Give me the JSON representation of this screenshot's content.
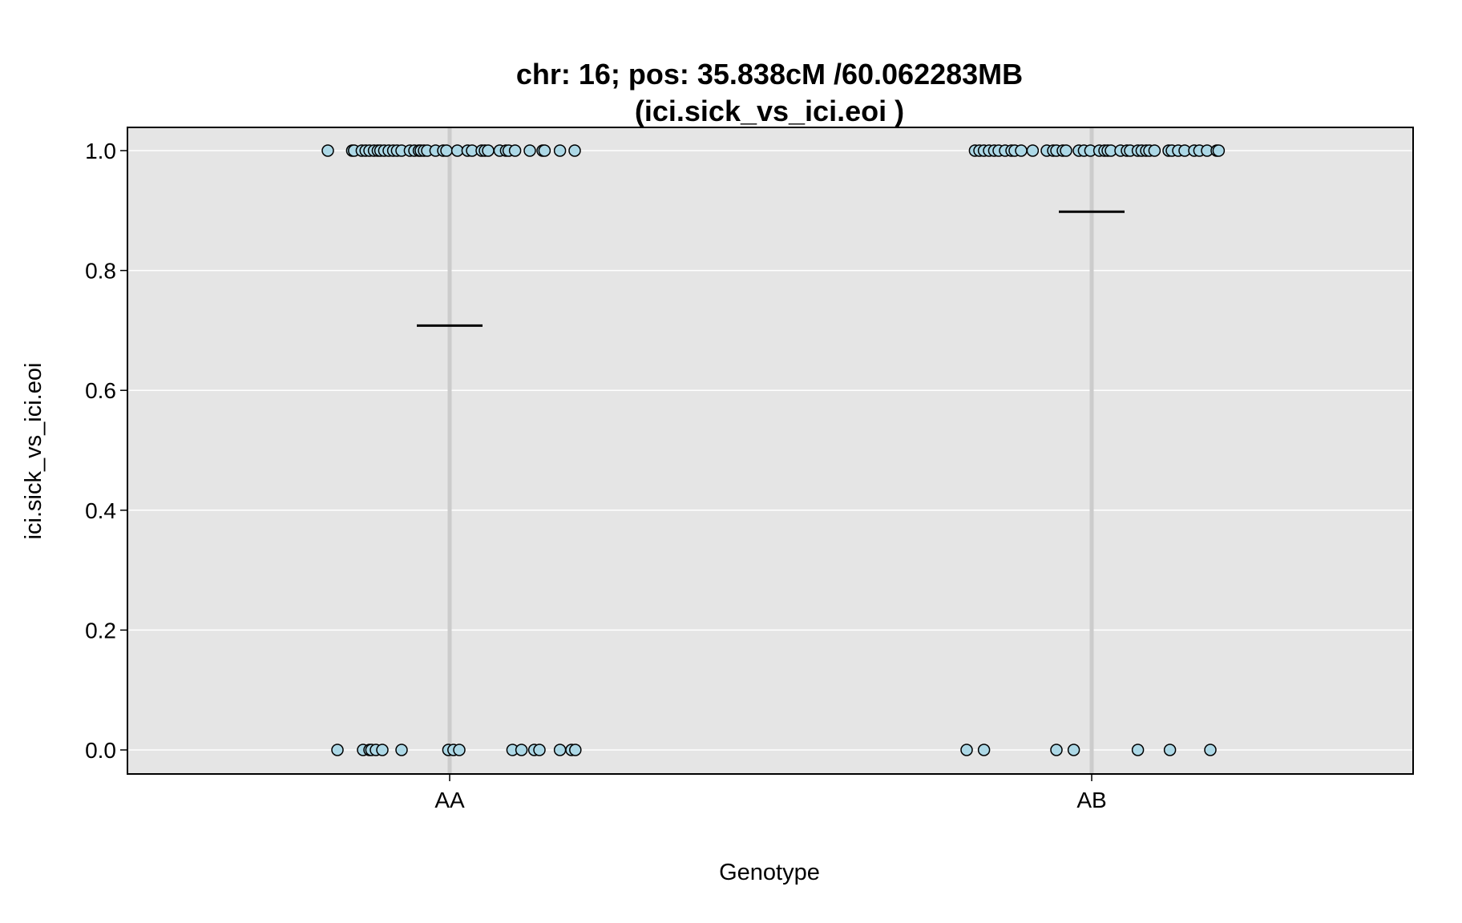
{
  "chart_data": {
    "type": "scatter",
    "title_line1": "chr: 16; pos: 35.838cM /60.062283MB",
    "title_line2": "(ici.sick_vs_ici.eoi )",
    "xlabel": "Genotype",
    "ylabel": "ici.sick_vs_ici.eoi",
    "categories": [
      "AA",
      "AB"
    ],
    "ylim": [
      -0.04,
      1.04
    ],
    "yticks": [
      "0.0",
      "0.2",
      "0.4",
      "0.6",
      "0.8",
      "1.0"
    ],
    "grid": true,
    "colors": {
      "panel_background": "#e5e5e5",
      "gridline": "#ffffff",
      "category_line": "#cccccc",
      "point_fill": "#add8e6",
      "point_stroke": "#000000",
      "mean_line": "#000000"
    },
    "series": [
      {
        "category": "AA",
        "mean": 0.708,
        "points": [
          {
            "jitter": -0.19,
            "y": 1
          },
          {
            "jitter": -0.152,
            "y": 1
          },
          {
            "jitter": -0.149,
            "y": 1
          },
          {
            "jitter": -0.137,
            "y": 1
          },
          {
            "jitter": -0.131,
            "y": 1
          },
          {
            "jitter": -0.125,
            "y": 1
          },
          {
            "jitter": -0.118,
            "y": 1
          },
          {
            "jitter": -0.112,
            "y": 1
          },
          {
            "jitter": -0.108,
            "y": 1
          },
          {
            "jitter": -0.102,
            "y": 1
          },
          {
            "jitter": -0.095,
            "y": 1
          },
          {
            "jitter": -0.088,
            "y": 1
          },
          {
            "jitter": -0.082,
            "y": 1
          },
          {
            "jitter": -0.075,
            "y": 1
          },
          {
            "jitter": -0.062,
            "y": 1
          },
          {
            "jitter": -0.055,
            "y": 1
          },
          {
            "jitter": -0.048,
            "y": 1
          },
          {
            "jitter": -0.045,
            "y": 1
          },
          {
            "jitter": -0.04,
            "y": 1
          },
          {
            "jitter": -0.035,
            "y": 1
          },
          {
            "jitter": -0.022,
            "y": 1
          },
          {
            "jitter": -0.01,
            "y": 1
          },
          {
            "jitter": -0.005,
            "y": 1
          },
          {
            "jitter": 0.012,
            "y": 1
          },
          {
            "jitter": 0.028,
            "y": 1
          },
          {
            "jitter": 0.035,
            "y": 1
          },
          {
            "jitter": 0.05,
            "y": 1
          },
          {
            "jitter": 0.055,
            "y": 1
          },
          {
            "jitter": 0.06,
            "y": 1
          },
          {
            "jitter": 0.078,
            "y": 1
          },
          {
            "jitter": 0.088,
            "y": 1
          },
          {
            "jitter": 0.092,
            "y": 1
          },
          {
            "jitter": 0.102,
            "y": 1
          },
          {
            "jitter": 0.125,
            "y": 1
          },
          {
            "jitter": 0.145,
            "y": 1
          },
          {
            "jitter": 0.148,
            "y": 1
          },
          {
            "jitter": 0.172,
            "y": 1
          },
          {
            "jitter": 0.195,
            "y": 1
          },
          {
            "jitter": -0.175,
            "y": 0
          },
          {
            "jitter": -0.135,
            "y": 0
          },
          {
            "jitter": -0.125,
            "y": 0
          },
          {
            "jitter": -0.122,
            "y": 0
          },
          {
            "jitter": -0.115,
            "y": 0
          },
          {
            "jitter": -0.105,
            "y": 0
          },
          {
            "jitter": -0.075,
            "y": 0
          },
          {
            "jitter": -0.002,
            "y": 0
          },
          {
            "jitter": 0.006,
            "y": 0
          },
          {
            "jitter": 0.015,
            "y": 0
          },
          {
            "jitter": 0.098,
            "y": 0
          },
          {
            "jitter": 0.112,
            "y": 0
          },
          {
            "jitter": 0.132,
            "y": 0
          },
          {
            "jitter": 0.14,
            "y": 0
          },
          {
            "jitter": 0.172,
            "y": 0
          },
          {
            "jitter": 0.19,
            "y": 0
          },
          {
            "jitter": 0.196,
            "y": 0
          }
        ]
      },
      {
        "category": "AB",
        "mean": 0.898,
        "points": [
          {
            "jitter": -0.182,
            "y": 1
          },
          {
            "jitter": -0.175,
            "y": 1
          },
          {
            "jitter": -0.168,
            "y": 1
          },
          {
            "jitter": -0.16,
            "y": 1
          },
          {
            "jitter": -0.152,
            "y": 1
          },
          {
            "jitter": -0.145,
            "y": 1
          },
          {
            "jitter": -0.135,
            "y": 1
          },
          {
            "jitter": -0.125,
            "y": 1
          },
          {
            "jitter": -0.12,
            "y": 1
          },
          {
            "jitter": -0.11,
            "y": 1
          },
          {
            "jitter": -0.092,
            "y": 1
          },
          {
            "jitter": -0.07,
            "y": 1
          },
          {
            "jitter": -0.06,
            "y": 1
          },
          {
            "jitter": -0.055,
            "y": 1
          },
          {
            "jitter": -0.045,
            "y": 1
          },
          {
            "jitter": -0.04,
            "y": 1
          },
          {
            "jitter": -0.02,
            "y": 1
          },
          {
            "jitter": -0.012,
            "y": 1
          },
          {
            "jitter": -0.002,
            "y": 1
          },
          {
            "jitter": 0.012,
            "y": 1
          },
          {
            "jitter": 0.02,
            "y": 1
          },
          {
            "jitter": 0.025,
            "y": 1
          },
          {
            "jitter": 0.03,
            "y": 1
          },
          {
            "jitter": 0.045,
            "y": 1
          },
          {
            "jitter": 0.055,
            "y": 1
          },
          {
            "jitter": 0.06,
            "y": 1
          },
          {
            "jitter": 0.072,
            "y": 1
          },
          {
            "jitter": 0.078,
            "y": 1
          },
          {
            "jitter": 0.085,
            "y": 1
          },
          {
            "jitter": 0.09,
            "y": 1
          },
          {
            "jitter": 0.098,
            "y": 1
          },
          {
            "jitter": 0.12,
            "y": 1
          },
          {
            "jitter": 0.125,
            "y": 1
          },
          {
            "jitter": 0.135,
            "y": 1
          },
          {
            "jitter": 0.145,
            "y": 1
          },
          {
            "jitter": 0.16,
            "y": 1
          },
          {
            "jitter": 0.168,
            "y": 1
          },
          {
            "jitter": 0.18,
            "y": 1
          },
          {
            "jitter": 0.195,
            "y": 1
          },
          {
            "jitter": 0.198,
            "y": 1
          },
          {
            "jitter": -0.195,
            "y": 0
          },
          {
            "jitter": -0.168,
            "y": 0
          },
          {
            "jitter": -0.055,
            "y": 0
          },
          {
            "jitter": -0.028,
            "y": 0
          },
          {
            "jitter": 0.072,
            "y": 0
          },
          {
            "jitter": 0.122,
            "y": 0
          },
          {
            "jitter": 0.185,
            "y": 0
          }
        ]
      }
    ]
  }
}
